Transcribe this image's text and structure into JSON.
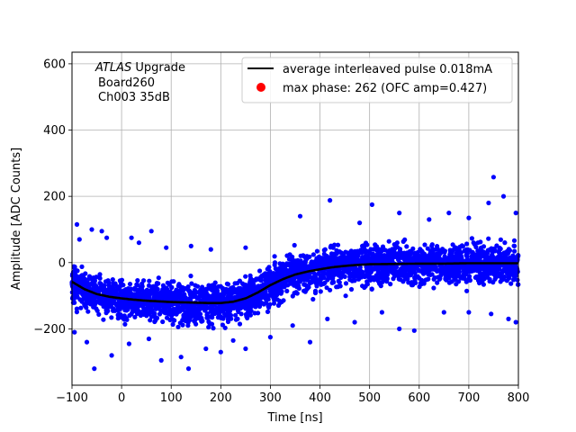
{
  "chart_data": {
    "type": "scatter",
    "xlabel": "Time [ns]",
    "ylabel": "Amplitude [ADC Counts]",
    "xlim": [
      -100,
      800
    ],
    "ylim": [
      -370,
      635
    ],
    "xticks": [
      -100,
      0,
      100,
      200,
      300,
      400,
      500,
      600,
      700,
      800
    ],
    "xtick_labels": [
      "−100",
      "0",
      "100",
      "200",
      "300",
      "400",
      "500",
      "600",
      "700",
      "800"
    ],
    "yticks": [
      -200,
      0,
      200,
      400,
      600
    ],
    "ytick_labels": [
      "−200",
      "0",
      "200",
      "400",
      "600"
    ],
    "grid": true,
    "annotation": {
      "line1_italic": "ATLAS",
      "line1_rest": " Upgrade",
      "line2": "Board260",
      "line3": "Ch003 35dB"
    },
    "legend": {
      "position": "top-right",
      "entries": [
        {
          "label": "average interleaved pulse 0.018mA",
          "kind": "line",
          "color": "#000000"
        },
        {
          "label": "max phase: 262 (OFC amp=0.427)",
          "kind": "point",
          "color": "#ff0000"
        }
      ]
    },
    "series": [
      {
        "name": "average interleaved pulse 0.018mA",
        "kind": "line",
        "color": "#000000",
        "x": [
          -100,
          -75,
          -50,
          -25,
          0,
          25,
          50,
          75,
          100,
          125,
          150,
          175,
          200,
          225,
          250,
          275,
          300,
          325,
          350,
          375,
          400,
          425,
          450,
          475,
          500,
          550,
          600,
          650,
          700,
          750,
          800
        ],
        "y": [
          -58,
          -80,
          -95,
          -103,
          -108,
          -112,
          -115,
          -117,
          -119,
          -120,
          -121,
          -122,
          -122,
          -118,
          -108,
          -90,
          -68,
          -50,
          -36,
          -27,
          -20,
          -14,
          -10,
          -7,
          -5,
          -4,
          -3,
          -3,
          -2,
          -2,
          -2
        ]
      },
      {
        "name": "samples",
        "kind": "scatter",
        "color": "#0000ff",
        "band_sigma": 40,
        "outliers": [
          {
            "x": 750,
            "y": 258
          },
          {
            "x": 420,
            "y": 188
          },
          {
            "x": 770,
            "y": 200
          },
          {
            "x": 740,
            "y": 180
          },
          {
            "x": 505,
            "y": 175
          },
          {
            "x": 560,
            "y": 150
          },
          {
            "x": 660,
            "y": 150
          },
          {
            "x": 360,
            "y": 140
          },
          {
            "x": 480,
            "y": 120
          },
          {
            "x": 620,
            "y": 130
          },
          {
            "x": 700,
            "y": 135
          },
          {
            "x": 795,
            "y": 150
          },
          {
            "x": -90,
            "y": 115
          },
          {
            "x": -85,
            "y": 70
          },
          {
            "x": -60,
            "y": 100
          },
          {
            "x": -40,
            "y": 95
          },
          {
            "x": -30,
            "y": 75
          },
          {
            "x": 20,
            "y": 75
          },
          {
            "x": 35,
            "y": 60
          },
          {
            "x": 60,
            "y": 95
          },
          {
            "x": 90,
            "y": 45
          },
          {
            "x": 140,
            "y": 50
          },
          {
            "x": 180,
            "y": 40
          },
          {
            "x": 250,
            "y": 45
          },
          {
            "x": -95,
            "y": -210
          },
          {
            "x": -70,
            "y": -240
          },
          {
            "x": -55,
            "y": -320
          },
          {
            "x": -20,
            "y": -280
          },
          {
            "x": 15,
            "y": -245
          },
          {
            "x": 55,
            "y": -230
          },
          {
            "x": 80,
            "y": -295
          },
          {
            "x": 120,
            "y": -285
          },
          {
            "x": 135,
            "y": -320
          },
          {
            "x": 170,
            "y": -260
          },
          {
            "x": 200,
            "y": -270
          },
          {
            "x": 225,
            "y": -235
          },
          {
            "x": 250,
            "y": -260
          },
          {
            "x": 300,
            "y": -225
          },
          {
            "x": 345,
            "y": -190
          },
          {
            "x": 380,
            "y": -240
          },
          {
            "x": 415,
            "y": -170
          },
          {
            "x": 470,
            "y": -180
          },
          {
            "x": 525,
            "y": -150
          },
          {
            "x": 560,
            "y": -200
          },
          {
            "x": 590,
            "y": -205
          },
          {
            "x": 650,
            "y": -150
          },
          {
            "x": 700,
            "y": -150
          },
          {
            "x": 745,
            "y": -155
          },
          {
            "x": 780,
            "y": -170
          },
          {
            "x": 795,
            "y": -180
          }
        ]
      },
      {
        "name": "max phase: 262 (OFC amp=0.427)",
        "kind": "point",
        "color": "#ff0000",
        "x": [],
        "y": []
      }
    ]
  }
}
